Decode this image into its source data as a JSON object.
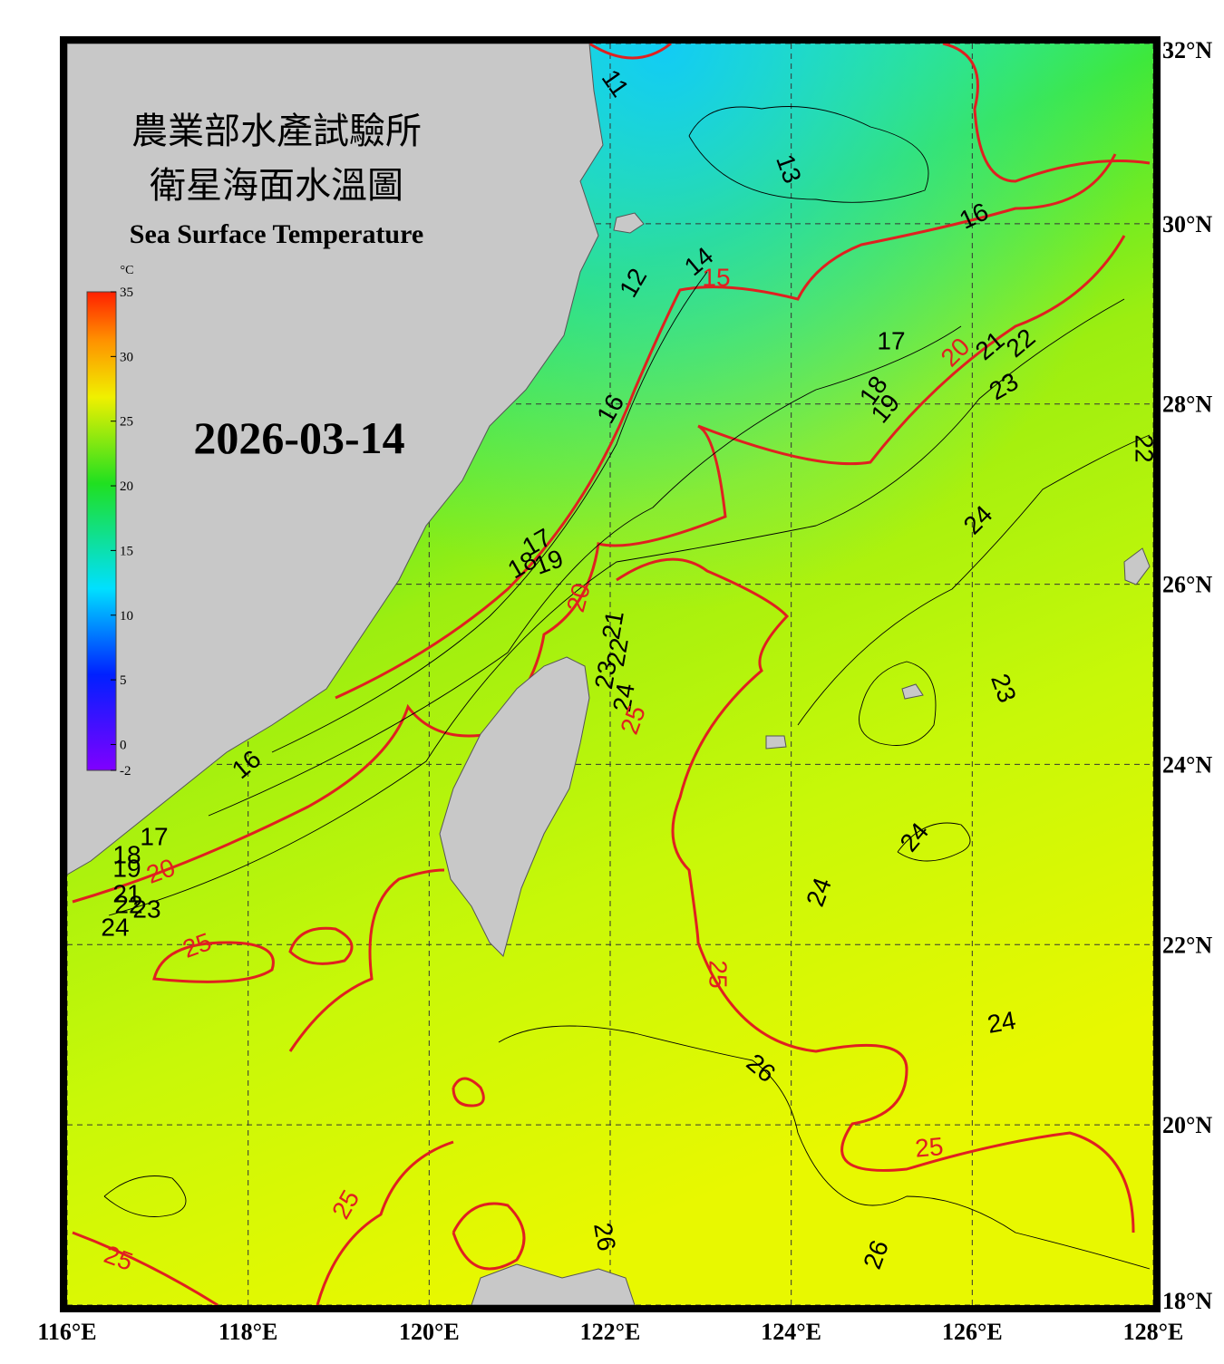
{
  "header": {
    "title_zh": "農業部水產試驗所",
    "subtitle_zh": "衛星海面水溫圖",
    "title_en": "Sea Surface Temperature",
    "date": "2026-03-14"
  },
  "colorbar": {
    "unit": "°C",
    "lim": [
      -2,
      35
    ],
    "ticks": [
      35,
      30,
      25,
      20,
      15,
      10,
      5,
      0,
      -2
    ]
  },
  "map": {
    "lonlim": [
      116,
      128
    ],
    "latlim": [
      18,
      32
    ],
    "lonticks": [
      {
        "value": 116,
        "label": "116°E"
      },
      {
        "value": 118,
        "label": "118°E"
      },
      {
        "value": 120,
        "label": "120°E"
      },
      {
        "value": 122,
        "label": "122°E"
      },
      {
        "value": 124,
        "label": "124°E"
      },
      {
        "value": 126,
        "label": "126°E"
      },
      {
        "value": 128,
        "label": "128°E"
      }
    ],
    "latticks": [
      {
        "value": 32,
        "label": "32°N"
      },
      {
        "value": 30,
        "label": "30°N"
      },
      {
        "value": 28,
        "label": "28°N"
      },
      {
        "value": 26,
        "label": "26°N"
      },
      {
        "value": 24,
        "label": "24°N"
      },
      {
        "value": 22,
        "label": "22°N"
      },
      {
        "value": 20,
        "label": "20°N"
      },
      {
        "value": 18,
        "label": "18°N"
      }
    ],
    "grid": true,
    "contour_labels": [
      11,
      13,
      16,
      12,
      14,
      15,
      17,
      20,
      21,
      22,
      23,
      18,
      19,
      16,
      24,
      17,
      18,
      19,
      20,
      21,
      22,
      23,
      24,
      25,
      16,
      17,
      18,
      19,
      20,
      21,
      22,
      23,
      24,
      25,
      23,
      24,
      24,
      25,
      24,
      26,
      25,
      25,
      25,
      26,
      26,
      22
    ]
  }
}
